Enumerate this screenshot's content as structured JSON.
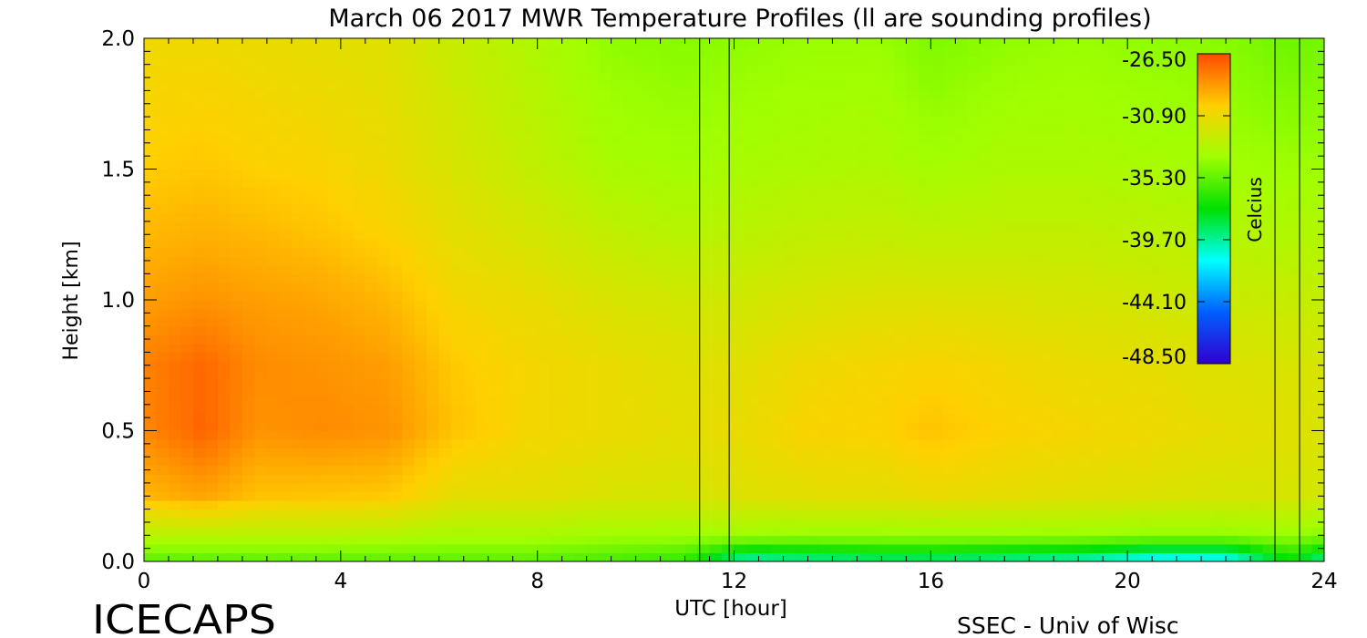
{
  "chart_data": {
    "type": "heatmap",
    "title": "March 06 2017 MWR Temperature Profiles (ll are sounding profiles)",
    "xlabel": "UTC [hour]",
    "ylabel": "Height [km]",
    "xlim": [
      0,
      24
    ],
    "ylim": [
      0,
      2.0
    ],
    "x_ticks": [
      "0",
      "4",
      "8",
      "12",
      "16",
      "20",
      "24"
    ],
    "y_ticks": [
      "0.0",
      "0.5",
      "1.0",
      "1.5",
      "2.0"
    ],
    "colorbar": {
      "label": "Celcius",
      "range": [
        -48.5,
        -26.5
      ],
      "tick_labels": [
        "-26.50",
        "-30.90",
        "-35.30",
        "-39.70",
        "-44.10",
        "-48.50"
      ],
      "colors": [
        "#ff4a00",
        "#ffd000",
        "#a0ff00",
        "#00e000",
        "#00ffff",
        "#0060ff",
        "#3000d0"
      ]
    },
    "sounding_lines_utc": [
      11.3,
      11.9,
      23.0,
      23.5
    ],
    "grid": false,
    "profiles": [
      {
        "t": 0.0,
        "temps": [
          -35.5,
          -33.0,
          -29.5,
          -28.2,
          -28.0,
          -28.8,
          -29.5,
          -30.2,
          -30.8
        ]
      },
      {
        "t": 1.2,
        "temps": [
          -35.5,
          -33.0,
          -29.0,
          -27.2,
          -27.3,
          -28.5,
          -29.3,
          -30.0,
          -30.8
        ]
      },
      {
        "t": 2.3,
        "temps": [
          -35.5,
          -33.0,
          -29.8,
          -28.5,
          -28.3,
          -28.8,
          -29.5,
          -30.3,
          -31.0
        ]
      },
      {
        "t": 3.6,
        "temps": [
          -35.5,
          -33.0,
          -29.9,
          -28.3,
          -28.5,
          -29.0,
          -29.8,
          -30.5,
          -31.2
        ]
      },
      {
        "t": 5.0,
        "temps": [
          -35.5,
          -33.2,
          -30.0,
          -28.5,
          -28.8,
          -29.5,
          -30.3,
          -31.0,
          -31.5
        ]
      },
      {
        "t": 6.3,
        "temps": [
          -35.5,
          -33.5,
          -31.2,
          -29.8,
          -30.0,
          -30.6,
          -31.2,
          -31.8,
          -32.4
        ]
      },
      {
        "t": 7.8,
        "temps": [
          -35.5,
          -33.5,
          -31.3,
          -30.6,
          -30.6,
          -31.0,
          -31.8,
          -32.6,
          -33.2
        ]
      },
      {
        "t": 9.5,
        "temps": [
          -36.0,
          -33.8,
          -31.7,
          -31.0,
          -31.0,
          -31.7,
          -32.6,
          -33.6,
          -34.2
        ]
      },
      {
        "t": 11.0,
        "temps": [
          -36.5,
          -33.8,
          -31.8,
          -31.2,
          -31.4,
          -32.0,
          -33.0,
          -33.8,
          -34.4
        ]
      },
      {
        "t": 12.2,
        "temps": [
          -40.5,
          -33.8,
          -31.5,
          -31.0,
          -31.3,
          -32.0,
          -32.8,
          -33.6,
          -34.2
        ]
      },
      {
        "t": 13.5,
        "temps": [
          -40.0,
          -34.0,
          -31.3,
          -30.4,
          -30.8,
          -31.7,
          -32.6,
          -33.5,
          -34.0
        ]
      },
      {
        "t": 15.0,
        "temps": [
          -39.5,
          -34.0,
          -31.3,
          -30.3,
          -30.6,
          -31.5,
          -32.5,
          -33.4,
          -34.0
        ]
      },
      {
        "t": 16.0,
        "temps": [
          -39.5,
          -34.0,
          -31.0,
          -29.8,
          -30.4,
          -31.5,
          -32.7,
          -33.8,
          -34.6
        ]
      },
      {
        "t": 17.5,
        "temps": [
          -40.0,
          -34.0,
          -31.2,
          -30.3,
          -30.7,
          -31.6,
          -32.6,
          -33.5,
          -34.2
        ]
      },
      {
        "t": 19.0,
        "temps": [
          -40.5,
          -34.0,
          -31.4,
          -30.6,
          -31.0,
          -31.8,
          -32.6,
          -33.5,
          -34.0
        ]
      },
      {
        "t": 20.5,
        "temps": [
          -42.0,
          -34.2,
          -31.6,
          -30.8,
          -31.2,
          -32.0,
          -32.8,
          -33.6,
          -34.2
        ]
      },
      {
        "t": 22.0,
        "temps": [
          -42.0,
          -34.2,
          -31.8,
          -31.2,
          -31.5,
          -32.2,
          -33.0,
          -33.8,
          -34.4
        ]
      },
      {
        "t": 23.3,
        "temps": [
          -37.5,
          -34.0,
          -31.8,
          -31.4,
          -31.7,
          -32.4,
          -33.2,
          -34.0,
          -35.0
        ]
      },
      {
        "t": 24.0,
        "temps": [
          -40.0,
          -34.5,
          -32.0,
          -31.6,
          -31.8,
          -32.5,
          -33.2,
          -34.0,
          -34.8
        ]
      }
    ],
    "profile_heights_km": [
      0.0,
      0.1,
      0.25,
      0.5,
      0.75,
      1.0,
      1.25,
      1.55,
      2.0
    ]
  },
  "footer": {
    "left_label": "ICECAPS",
    "right_label": "SSEC - Univ of Wisc"
  }
}
